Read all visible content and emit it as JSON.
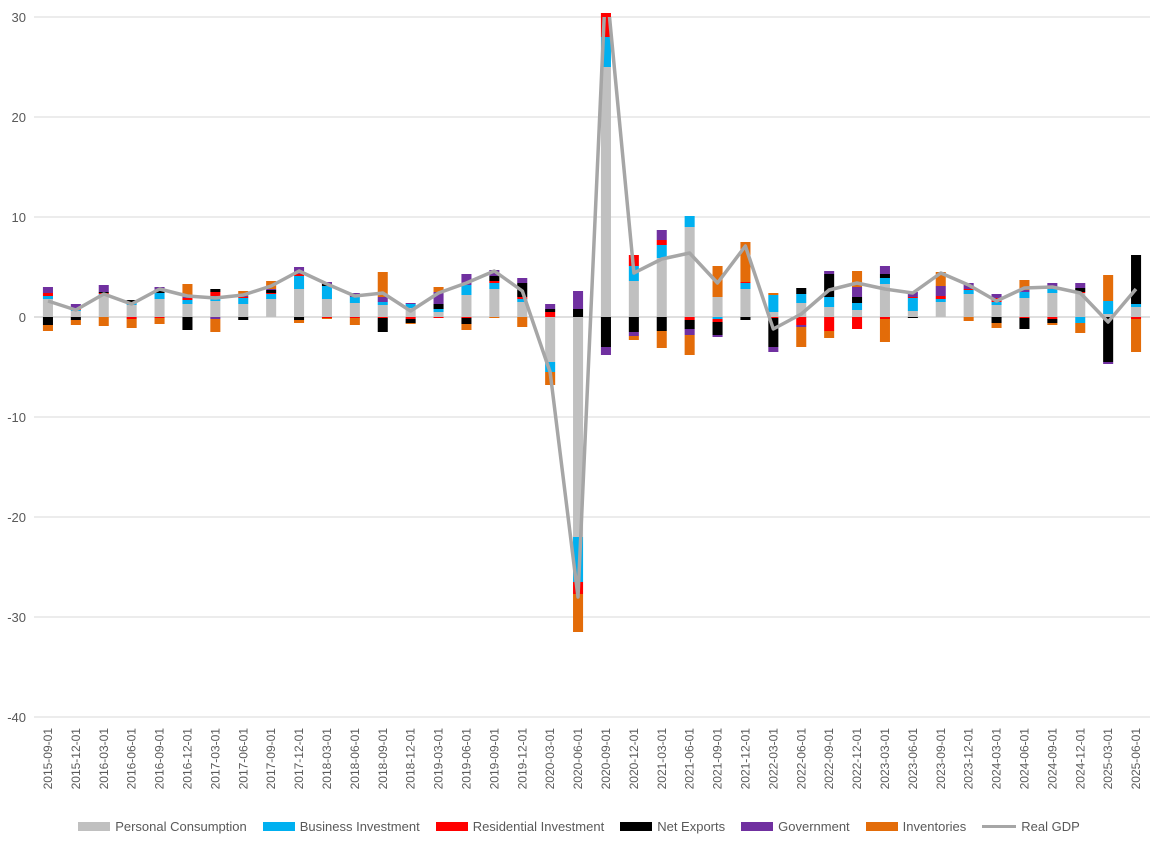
{
  "chart_data": {
    "type": "bar",
    "stacked": true,
    "title": "",
    "xlabel": "",
    "ylabel": "",
    "ylim": [
      -40,
      30
    ],
    "yticks": [
      -40,
      -30,
      -20,
      -10,
      0,
      10,
      20,
      30
    ],
    "grid": "horizontal",
    "legend_position": "bottom",
    "categories": [
      "2015-09-01",
      "2015-12-01",
      "2016-03-01",
      "2016-06-01",
      "2016-09-01",
      "2016-12-01",
      "2017-03-01",
      "2017-06-01",
      "2017-09-01",
      "2017-12-01",
      "2018-03-01",
      "2018-06-01",
      "2018-09-01",
      "2018-12-01",
      "2019-03-01",
      "2019-06-01",
      "2019-09-01",
      "2019-12-01",
      "2020-03-01",
      "2020-06-01",
      "2020-09-01",
      "2020-12-01",
      "2021-03-01",
      "2021-06-01",
      "2021-09-01",
      "2021-12-01",
      "2022-03-01",
      "2022-06-01",
      "2022-09-01",
      "2022-12-01",
      "2023-03-01",
      "2023-06-01",
      "2023-09-01",
      "2023-12-01",
      "2024-03-01",
      "2024-06-01",
      "2024-09-01",
      "2024-12-01",
      "2025-03-01",
      "2025-06-01"
    ],
    "series": [
      {
        "name": "Personal Consumption",
        "color": "#c0c0c0",
        "values": [
          1.8,
          0.6,
          2.2,
          1.2,
          1.8,
          1.3,
          1.6,
          1.3,
          1.8,
          2.8,
          1.8,
          1.4,
          1.2,
          0.9,
          0.5,
          2.2,
          2.8,
          1.5,
          -4.5,
          -22,
          25,
          3.6,
          5.9,
          9.0,
          2.0,
          2.8,
          0.5,
          1.4,
          1.0,
          0.7,
          3.3,
          0.6,
          1.5,
          2.3,
          1.2,
          1.9,
          2.4,
          2.4,
          0.3,
          1.0
        ]
      },
      {
        "name": "Business Investment",
        "color": "#00b0f0",
        "values": [
          0.3,
          0.1,
          0.1,
          0.2,
          0.6,
          0.4,
          0.5,
          0.6,
          0.5,
          1.3,
          1.3,
          0.6,
          0.3,
          0.4,
          0.3,
          1.0,
          0.6,
          0.3,
          -1.0,
          -4.5,
          3.0,
          1.5,
          1.3,
          1.1,
          -0.2,
          0.6,
          1.7,
          0.9,
          1.0,
          0.7,
          0.6,
          1.3,
          0.3,
          0.4,
          0.3,
          0.6,
          0.4,
          -0.6,
          1.3,
          0.3
        ]
      },
      {
        "name": "Residential Investment",
        "color": "#ff0000",
        "values": [
          0.3,
          0.1,
          0.1,
          -0.2,
          -0.1,
          0.2,
          0.4,
          0.1,
          0.1,
          0.2,
          -0.1,
          -0.1,
          -0.1,
          -0.2,
          -0.1,
          -0.1,
          0.2,
          0.2,
          0.5,
          -1.2,
          2.4,
          1.1,
          0.5,
          -0.3,
          -0.3,
          0.1,
          -0.1,
          -0.8,
          -1.4,
          -1.2,
          -0.2,
          0.1,
          0.3,
          0.1,
          0.4,
          -0.1,
          -0.2,
          0.1,
          0.0,
          -0.2
        ]
      },
      {
        "name": "Net Exports",
        "color": "#000000",
        "values": [
          -0.8,
          -0.3,
          0.1,
          0.3,
          0.2,
          -1.3,
          0.3,
          -0.3,
          0.3,
          -0.3,
          0.2,
          0.0,
          -1.4,
          -0.4,
          0.5,
          -0.6,
          0.5,
          1.4,
          0.3,
          0.8,
          -3.0,
          -1.5,
          -1.4,
          -0.9,
          -1.3,
          -0.3,
          -2.9,
          0.6,
          2.3,
          0.6,
          0.4,
          -0.1,
          0.0,
          0.0,
          -0.6,
          -1.1,
          -0.4,
          0.4,
          -4.5,
          4.9
        ]
      },
      {
        "name": "Government",
        "color": "#7030a0",
        "values": [
          0.6,
          0.5,
          0.7,
          0.0,
          0.4,
          0.1,
          -0.2,
          0.1,
          0.1,
          0.7,
          0.2,
          0.4,
          0.5,
          0.1,
          1.2,
          1.1,
          0.6,
          0.5,
          0.5,
          1.8,
          -0.8,
          -0.4,
          1.0,
          -0.6,
          -0.2,
          0.0,
          -0.5,
          -0.2,
          0.3,
          1.0,
          0.8,
          0.5,
          1.0,
          0.6,
          0.4,
          0.2,
          0.6,
          0.5,
          -0.2,
          0.0
        ]
      },
      {
        "name": "Inventories",
        "color": "#e36c09",
        "values": [
          -0.6,
          -0.5,
          -0.9,
          -0.9,
          -0.6,
          1.3,
          -1.3,
          0.5,
          0.8,
          -0.3,
          -0.1,
          -0.7,
          2.5,
          -0.1,
          0.5,
          -0.6,
          -0.1,
          -1.0,
          -1.3,
          -3.8,
          0.0,
          -0.4,
          -1.7,
          -2.0,
          3.1,
          4.0,
          0.2,
          -2.0,
          -0.7,
          1.6,
          -2.3,
          0.0,
          1.4,
          -0.4,
          -0.5,
          1.0,
          -0.2,
          -1.0,
          2.6,
          -3.3
        ]
      },
      {
        "name": "Real GDP",
        "type": "line",
        "color": "#a6a6a6",
        "values": [
          1.6,
          0.7,
          2.3,
          1.3,
          2.8,
          2.1,
          1.9,
          2.2,
          3.1,
          4.6,
          3.3,
          2.1,
          2.4,
          0.6,
          2.4,
          3.4,
          4.6,
          2.6,
          -5.5,
          -28,
          33.8,
          4.4,
          5.8,
          6.4,
          3.4,
          7.1,
          -1.2,
          0.3,
          2.7,
          3.4,
          2.8,
          2.4,
          4.4,
          3.2,
          1.6,
          2.9,
          3.0,
          2.4,
          -0.5,
          2.8
        ]
      }
    ]
  }
}
